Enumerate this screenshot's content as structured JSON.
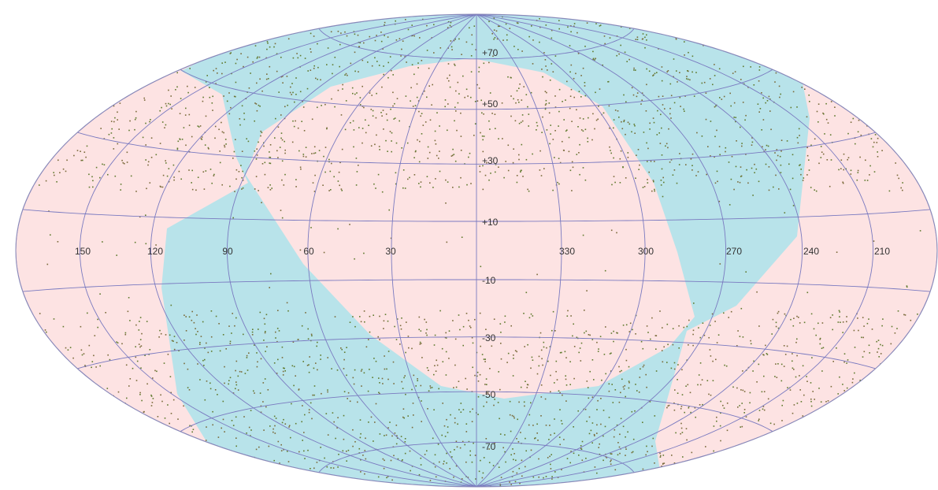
{
  "map": {
    "longitude_labels": [
      "150",
      "120",
      "90",
      "60",
      "30",
      "330",
      "300",
      "270",
      "240",
      "210"
    ],
    "latitude_labels": [
      "+70",
      "+50",
      "+30",
      "+10",
      "-10",
      "-30",
      "-50",
      "-70"
    ]
  }
}
